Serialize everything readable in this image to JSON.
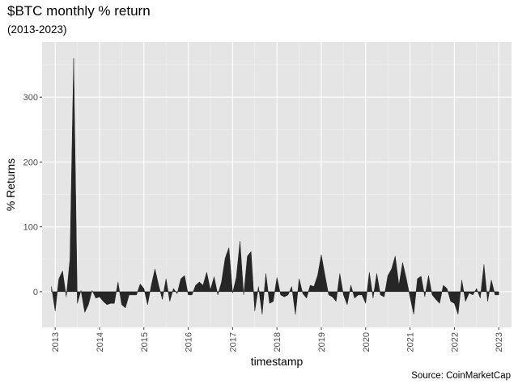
{
  "chart_data": {
    "type": "area",
    "title": "$BTC monthly % return",
    "subtitle": "(2013-2023)",
    "caption": "Source: CoinMarketCap",
    "xlabel": "timestamp",
    "ylabel": "% Returns",
    "x_ticks": [
      "2013",
      "2014",
      "2015",
      "2016",
      "2017",
      "2018",
      "2019",
      "2020",
      "2021",
      "2022",
      "2023"
    ],
    "y_ticks": [
      0,
      100,
      200,
      300
    ],
    "xlim": [
      "2012-09-15",
      "2023-04-15"
    ],
    "ylim": [
      -55,
      385
    ],
    "grid": true,
    "fill_color": "#262626",
    "panel_color": "#e5e5e5",
    "series": [
      {
        "x": [
          "2012-12",
          "2013-01",
          "2013-02",
          "2013-03",
          "2013-04",
          "2013-05",
          "2013-06",
          "2013-07",
          "2013-08",
          "2013-09",
          "2013-10",
          "2013-11",
          "2013-12",
          "2014-01",
          "2014-02",
          "2014-03",
          "2014-04",
          "2014-05",
          "2014-06",
          "2014-07",
          "2014-08",
          "2014-09",
          "2014-10",
          "2014-11",
          "2014-12",
          "2015-01",
          "2015-02",
          "2015-03",
          "2015-04",
          "2015-05",
          "2015-06",
          "2015-07",
          "2015-08",
          "2015-09",
          "2015-10",
          "2015-11",
          "2015-12",
          "2016-01",
          "2016-02",
          "2016-03",
          "2016-04",
          "2016-05",
          "2016-06",
          "2016-07",
          "2016-08",
          "2016-09",
          "2016-10",
          "2016-11",
          "2016-12",
          "2017-01",
          "2017-02",
          "2017-03",
          "2017-04",
          "2017-05",
          "2017-06",
          "2017-07",
          "2017-08",
          "2017-09",
          "2017-10",
          "2017-11",
          "2017-12",
          "2018-01",
          "2018-02",
          "2018-03",
          "2018-04",
          "2018-05",
          "2018-06",
          "2018-07",
          "2018-08",
          "2018-09",
          "2018-10",
          "2018-11",
          "2018-12",
          "2019-01",
          "2019-02",
          "2019-03",
          "2019-04",
          "2019-05",
          "2019-06",
          "2019-07",
          "2019-08",
          "2019-09",
          "2019-10",
          "2019-11",
          "2019-12",
          "2020-01",
          "2020-02",
          "2020-03",
          "2020-04",
          "2020-05",
          "2020-06",
          "2020-07",
          "2020-08",
          "2020-09",
          "2020-10",
          "2020-11",
          "2020-12",
          "2021-01",
          "2021-02",
          "2021-03",
          "2021-04",
          "2021-05",
          "2021-06",
          "2021-07",
          "2021-08",
          "2021-09",
          "2021-10",
          "2021-11",
          "2021-12",
          "2022-01",
          "2022-02",
          "2022-03",
          "2022-04",
          "2022-05",
          "2022-06",
          "2022-07",
          "2022-08",
          "2022-09",
          "2022-10",
          "2022-11",
          "2022-12",
          "2023-01"
        ],
        "values": [
          8,
          -30,
          20,
          32,
          -8,
          50,
          360,
          -18,
          2,
          -32,
          -20,
          2,
          -10,
          -8,
          -15,
          -20,
          -18,
          -18,
          15,
          -20,
          -25,
          -5,
          -5,
          -5,
          12,
          5,
          -20,
          10,
          35,
          10,
          -12,
          20,
          -15,
          5,
          -3,
          20,
          25,
          -5,
          -5,
          10,
          15,
          10,
          30,
          3,
          23,
          -5,
          15,
          52,
          68,
          -2,
          22,
          78,
          -5,
          55,
          62,
          -30,
          8,
          -35,
          28,
          -18,
          -15,
          22,
          -5,
          -8,
          -5,
          8,
          -35,
          20,
          -3,
          -10,
          10,
          8,
          25,
          57,
          25,
          -5,
          -8,
          -15,
          28,
          -5,
          -20,
          10,
          -10,
          -5,
          -5,
          -18,
          30,
          -10,
          28,
          -5,
          -8,
          25,
          35,
          55,
          10,
          45,
          20,
          -8,
          -35,
          20,
          24,
          -8,
          25,
          -5,
          -12,
          -18,
          10,
          5,
          -15,
          -18,
          -35,
          18,
          -15,
          -2,
          -5,
          5,
          -10,
          42,
          -15,
          18,
          -5,
          -5
        ],
        "color": "#262626"
      }
    ]
  }
}
